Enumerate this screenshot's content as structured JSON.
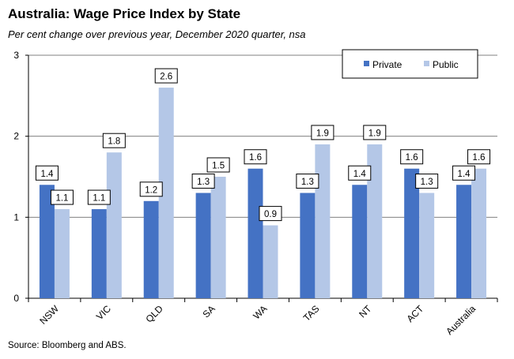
{
  "title": "Australia: Wage Price Index by State",
  "subtitle": "Per cent change over previous year, December 2020  quarter, nsa",
  "source": "Source: Bloomberg and ABS.",
  "colors": {
    "private": "#4472c4",
    "public": "#b4c7e7",
    "grid": "#808080"
  },
  "chart_data": {
    "type": "bar",
    "title": "Australia: Wage Price Index by State",
    "subtitle": "Per cent change over previous year, December 2020  quarter, nsa",
    "categories": [
      "NSW",
      "VIC",
      "QLD",
      "SA",
      "WA",
      "TAS",
      "NT",
      "ACT",
      "Australia"
    ],
    "series": [
      {
        "name": "Private",
        "values": [
          1.4,
          1.1,
          1.2,
          1.3,
          1.6,
          1.3,
          1.4,
          1.6,
          1.4
        ]
      },
      {
        "name": "Public",
        "values": [
          1.1,
          1.8,
          2.6,
          1.5,
          0.9,
          1.9,
          1.9,
          1.3,
          1.6
        ]
      }
    ],
    "ylim": [
      0,
      3
    ],
    "yticks": [
      0,
      1,
      2,
      3
    ],
    "grid": true,
    "legend_position": "top-right"
  }
}
